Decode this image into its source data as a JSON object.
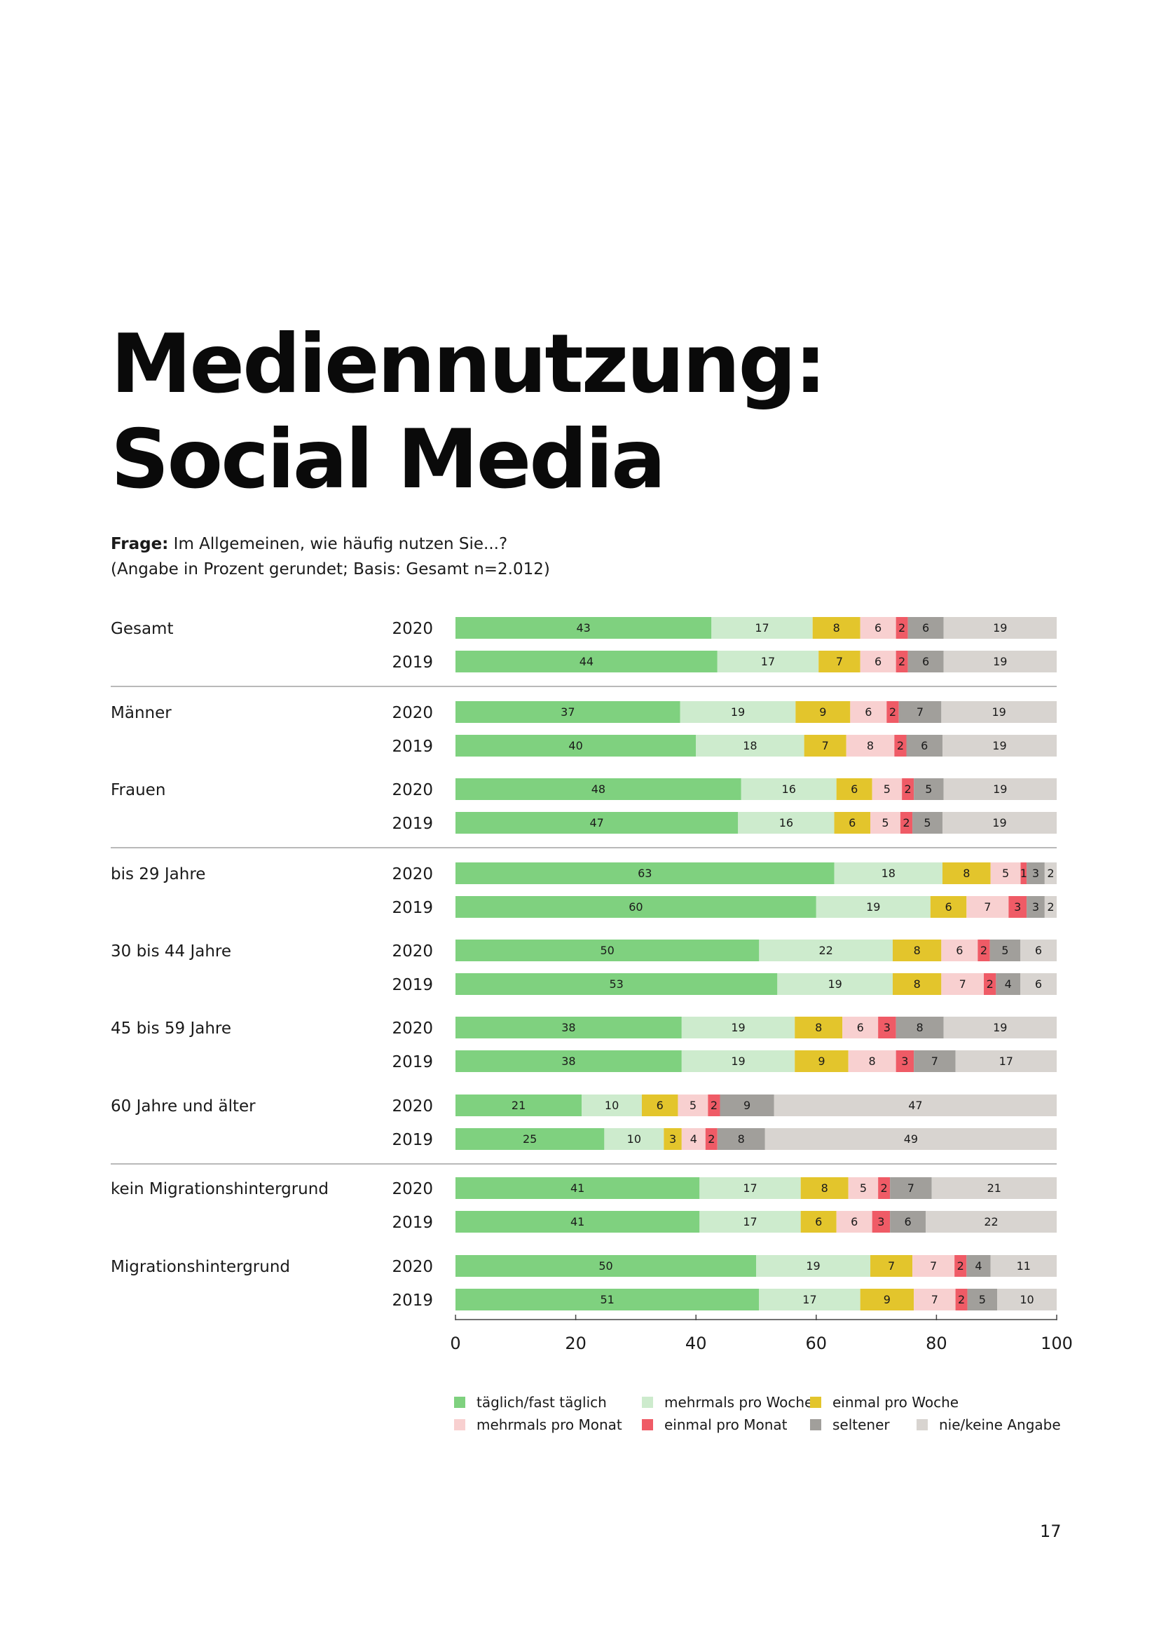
{
  "title": {
    "line1": "Mediennutzung:",
    "line2": "Social Media"
  },
  "question": {
    "label": "Frage:",
    "text": " Im Allgemeinen, wie häufig nutzen Sie...?",
    "note": "(Angabe in Prozent gerundet; Basis: Gesamt n=2.012)"
  },
  "page_number": "17",
  "colors": {
    "taeglich": "#7fd17f",
    "mehrmals_woche": "#cdebcd",
    "einmal_woche": "#e3c52c",
    "mehrmals_monat": "#f8d0d0",
    "einmal_monat": "#ef5b66",
    "seltener": "#a19f9b",
    "nie": "#d8d4d0",
    "divider": "#b9b9b9",
    "axis": "#444444"
  },
  "chart_data": {
    "type": "bar",
    "orientation": "horizontal",
    "stacked": true,
    "xlim": [
      0,
      100
    ],
    "xticks": [
      "0",
      "20",
      "40",
      "60",
      "80",
      "100"
    ],
    "series_names": [
      "täglich/fast täglich",
      "mehrmals pro Woche",
      "einmal pro Woche",
      "mehrmals pro Monat",
      "einmal pro Monat",
      "seltener",
      "nie/keine Angabe"
    ],
    "series_keys": [
      "taeglich",
      "mehrmals_woche",
      "einmal_woche",
      "mehrmals_monat",
      "einmal_monat",
      "seltener",
      "nie"
    ],
    "groups": [
      {
        "label": "Gesamt",
        "rows": [
          {
            "year": "2020",
            "values": [
              43,
              17,
              8,
              6,
              2,
              6,
              19
            ]
          },
          {
            "year": "2019",
            "values": [
              44,
              17,
              7,
              6,
              2,
              6,
              19
            ]
          }
        ]
      },
      {
        "label": "Männer",
        "rows": [
          {
            "year": "2020",
            "values": [
              37,
              19,
              9,
              6,
              2,
              7,
              19
            ]
          },
          {
            "year": "2019",
            "values": [
              40,
              18,
              7,
              8,
              2,
              6,
              19
            ]
          }
        ]
      },
      {
        "label": "Frauen",
        "rows": [
          {
            "year": "2020",
            "values": [
              48,
              16,
              6,
              5,
              2,
              5,
              19
            ]
          },
          {
            "year": "2019",
            "values": [
              47,
              16,
              6,
              5,
              2,
              5,
              19
            ]
          }
        ]
      },
      {
        "label": "bis 29 Jahre",
        "rows": [
          {
            "year": "2020",
            "values": [
              63,
              18,
              8,
              5,
              1,
              3,
              2
            ]
          },
          {
            "year": "2019",
            "values": [
              60,
              19,
              6,
              7,
              3,
              3,
              2
            ]
          }
        ]
      },
      {
        "label": "30 bis 44 Jahre",
        "rows": [
          {
            "year": "2020",
            "values": [
              50,
              22,
              8,
              6,
              2,
              5,
              6
            ]
          },
          {
            "year": "2019",
            "values": [
              53,
              19,
              8,
              7,
              2,
              4,
              6
            ]
          }
        ]
      },
      {
        "label": "45 bis 59 Jahre",
        "rows": [
          {
            "year": "2020",
            "values": [
              38,
              19,
              8,
              6,
              3,
              8,
              19
            ]
          },
          {
            "year": "2019",
            "values": [
              38,
              19,
              9,
              8,
              3,
              7,
              17
            ]
          }
        ]
      },
      {
        "label": "60 Jahre und älter",
        "rows": [
          {
            "year": "2020",
            "values": [
              21,
              10,
              6,
              5,
              2,
              9,
              47
            ]
          },
          {
            "year": "2019",
            "values": [
              25,
              10,
              3,
              4,
              2,
              8,
              49
            ]
          }
        ]
      },
      {
        "label": "kein Migrationshintergrund",
        "rows": [
          {
            "year": "2020",
            "values": [
              41,
              17,
              8,
              5,
              2,
              7,
              21
            ]
          },
          {
            "year": "2019",
            "values": [
              41,
              17,
              6,
              6,
              3,
              6,
              22
            ]
          }
        ]
      },
      {
        "label": "Migrationshintergrund",
        "rows": [
          {
            "year": "2020",
            "values": [
              50,
              19,
              7,
              7,
              2,
              4,
              11
            ]
          },
          {
            "year": "2019",
            "values": [
              51,
              17,
              9,
              7,
              2,
              5,
              10
            ]
          }
        ]
      }
    ],
    "dividers_after_groups": [
      0,
      2,
      6
    ]
  }
}
